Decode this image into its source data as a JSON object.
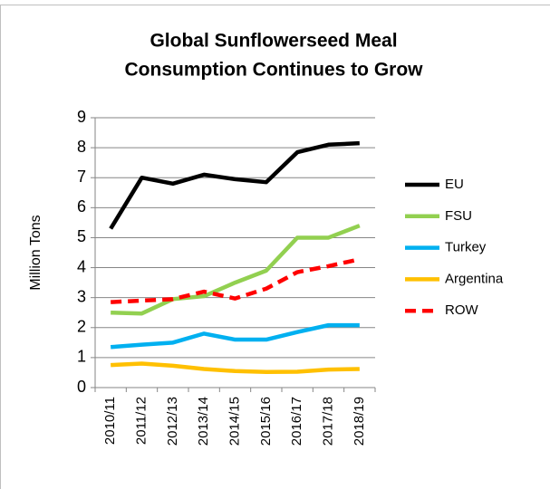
{
  "chart_data": {
    "type": "line",
    "title": [
      "Global Sunflowerseed Meal",
      "Consumption Continues to Grow"
    ],
    "y_label": "Million Tons",
    "categories": [
      "2010/11",
      "2011/12",
      "2012/13",
      "2013/14",
      "2014/15",
      "2015/16",
      "2016/17",
      "2017/18",
      "2018/19"
    ],
    "series": [
      {
        "name": "EU",
        "color": "#000000",
        "linestyle": "solid",
        "values": [
          5.3,
          7.0,
          6.8,
          7.1,
          6.95,
          6.85,
          7.85,
          8.1,
          8.15
        ]
      },
      {
        "name": "FSU",
        "color": "#92d050",
        "linestyle": "solid",
        "values": [
          2.5,
          2.47,
          2.95,
          3.05,
          3.5,
          3.9,
          5.0,
          5.0,
          5.4
        ]
      },
      {
        "name": "Turkey",
        "color": "#00b0f0",
        "linestyle": "solid",
        "values": [
          1.35,
          1.43,
          1.5,
          1.8,
          1.6,
          1.6,
          1.85,
          2.08,
          2.08
        ]
      },
      {
        "name": "Argentina",
        "color": "#ffc000",
        "linestyle": "solid",
        "values": [
          0.75,
          0.8,
          0.73,
          0.62,
          0.55,
          0.52,
          0.53,
          0.6,
          0.62
        ]
      },
      {
        "name": "ROW",
        "color": "#ff0000",
        "linestyle": "dashed",
        "values": [
          2.85,
          2.9,
          2.95,
          3.2,
          2.97,
          3.3,
          3.85,
          4.05,
          4.28
        ]
      }
    ],
    "ylim": [
      0,
      9
    ],
    "yticks": [
      0,
      1,
      2,
      3,
      4,
      5,
      6,
      7,
      8,
      9
    ],
    "grid": true,
    "legend": "right"
  }
}
